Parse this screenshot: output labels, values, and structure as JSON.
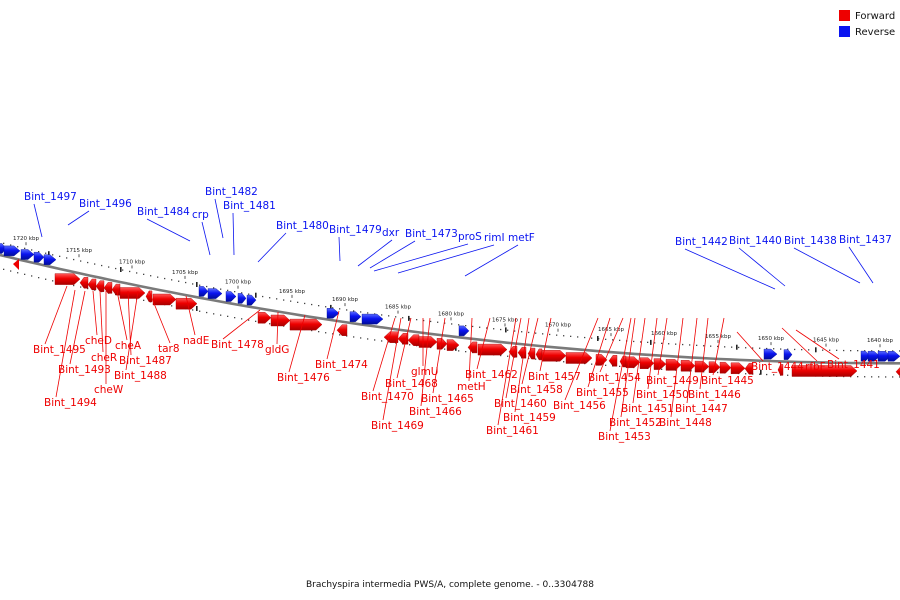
{
  "colors": {
    "forward": "#ee0000",
    "forward_dark": "#a80000",
    "reverse": "#0a14f0",
    "reverse_dark": "#000c9a",
    "backbone": "#7a7a7a",
    "tick": "#222222"
  },
  "legend": [
    {
      "label": "Forward",
      "strand": "forward"
    },
    {
      "label": "Reverse",
      "strand": "reverse"
    }
  ],
  "caption": "Brachyspira intermedia PWS/A, complete genome. - 0..3304788",
  "scale_ticks": [
    "1720 kbp",
    "1715 kbp",
    "1710 kbp",
    "1705 kbp",
    "1700 kbp",
    "1695 kbp",
    "1690 kbp",
    "1685 kbp",
    "1680 kbp",
    "1675 kbp",
    "1670 kbp",
    "1665 kbp",
    "1660 kbp",
    "1655 kbp",
    "1650 kbp",
    "1645 kbp",
    "1640 kbp"
  ],
  "reverse_genes": [
    "Bint_1497",
    "Bint_1496",
    "Bint_1484",
    "crp",
    "Bint_1482",
    "Bint_1481",
    "Bint_1480",
    "Bint_1479",
    "dxr",
    "Bint_1473",
    "proS",
    "rimI",
    "metF",
    "Bint_1442",
    "Bint_1440",
    "Bint_1438",
    "Bint_1437"
  ],
  "forward_genes": [
    "Bint_1495",
    "Bint_1494",
    "Bint_1493",
    "cheD",
    "cheR",
    "cheW",
    "cheA",
    "Bint_1487",
    "Bint_1488",
    "tar8",
    "nadE",
    "Bint_1478",
    "gldG",
    "Bint_1476",
    "Bint_1474",
    "Bint_1470",
    "Bint_1469",
    "Bint_1468",
    "glmU",
    "Bint_1466",
    "Bint_1465",
    "metH",
    "Bint_1462",
    "Bint_1461",
    "Bint_1460",
    "Bint_1459",
    "Bint_1458",
    "Bint_1457",
    "Bint_1456",
    "Bint_1455",
    "Bint_1454",
    "Bint_1453",
    "Bint_1452",
    "Bint_1451",
    "Bint_1450",
    "Bint_1449",
    "Bint_1448",
    "Bint_1447",
    "Bint_1446",
    "Bint_1445",
    "Bint_1444",
    "rfbF",
    "Bint_1441"
  ]
}
